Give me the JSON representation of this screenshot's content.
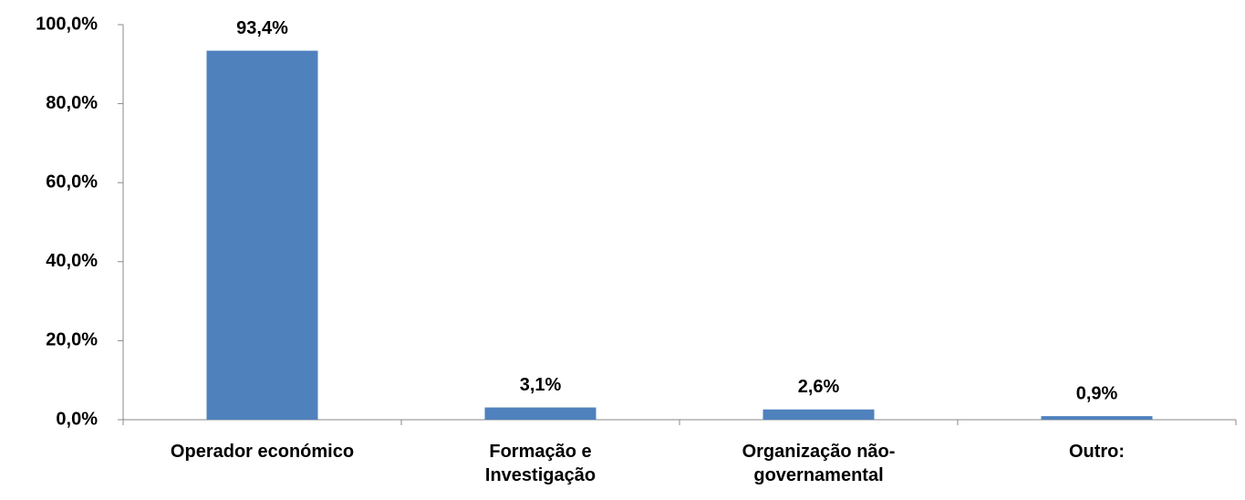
{
  "chart_data": {
    "type": "bar",
    "categories": [
      "Operador económico",
      "Formação e Investigação",
      "Organização não-governamental",
      "Outro:"
    ],
    "values": [
      93.4,
      3.1,
      2.6,
      0.9
    ],
    "value_labels": [
      "93,4%",
      "3,1%",
      "2,6%",
      "0,9%"
    ],
    "color": "#4f81bd",
    "ylim": [
      0,
      100
    ],
    "yticks": [
      {
        "value": 0,
        "label": "0,0%"
      },
      {
        "value": 20,
        "label": "20,0%"
      },
      {
        "value": 40,
        "label": "40,0%"
      },
      {
        "value": 60,
        "label": "60,0%"
      },
      {
        "value": 80,
        "label": "80,0%"
      },
      {
        "value": 100,
        "label": "100,0%"
      }
    ],
    "grid": false
  }
}
